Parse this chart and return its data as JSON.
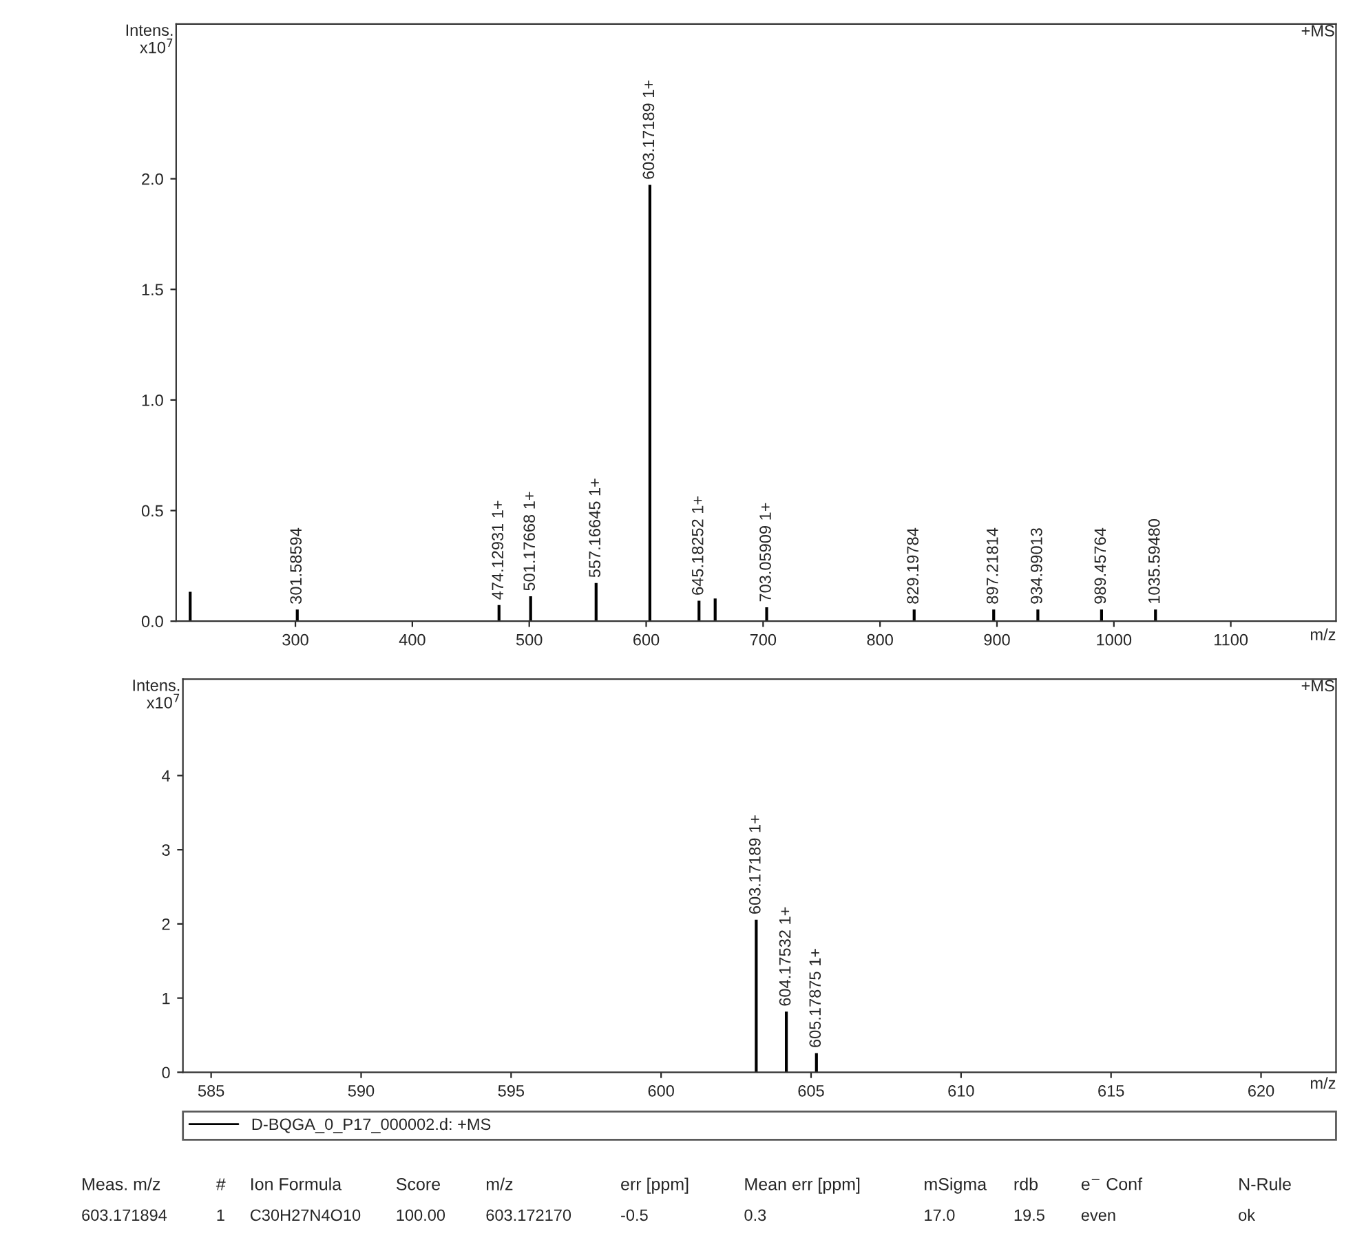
{
  "chart_data": [
    {
      "type": "bar",
      "ylabel": "Intens.\nx10$^{7}$",
      "xlabel": "m/z",
      "annotations": [
        "+MS",
        {
          "text": "301.58594",
          "x": 301.58594,
          "y": 0.05
        },
        {
          "text": "474.12931 1+",
          "x": 474.12931,
          "y": 0.07
        },
        {
          "text": "501.17668 1+",
          "x": 501.17668,
          "y": 0.11
        },
        {
          "text": "557.16645 1+",
          "x": 557.16645,
          "y": 0.17
        },
        {
          "text": "603.17189 1+",
          "x": 603.17189,
          "y": 1.97
        },
        {
          "text": "645.18252 1+",
          "x": 645.18252,
          "y": 0.09
        },
        {
          "text": "703.05909 1+",
          "x": 703.05909,
          "y": 0.06
        },
        {
          "text": "829.19784",
          "x": 829.19784,
          "y": 0.05
        },
        {
          "text": "897.21814",
          "x": 897.21814,
          "y": 0.05
        },
        {
          "text": "934.99013",
          "x": 934.99013,
          "y": 0.05
        },
        {
          "text": "989.45764",
          "x": 989.45764,
          "y": 0.05
        },
        {
          "text": "1035.59480",
          "x": 1035.5948,
          "y": 0.05
        }
      ],
      "x": [
        210,
        301.58594,
        474.12931,
        501.17668,
        557.16645,
        603.17189,
        645.18252,
        659,
        703.05909,
        829.19784,
        897.21814,
        934.99013,
        989.45764,
        1035.5948
      ],
      "series": [
        {
          "color": "#000000",
          "values": [
            0.13,
            0.05,
            0.07,
            0.11,
            0.17,
            1.97,
            0.09,
            0.1,
            0.06,
            0.05,
            0.05,
            0.05,
            0.05,
            0.05
          ]
        }
      ],
      "xlim": [
        198,
        1190
      ],
      "ylim": [
        0,
        2.7
      ],
      "xticks": [
        300,
        400,
        500,
        600,
        700,
        800,
        900,
        1000,
        1100
      ],
      "yticks": [
        {
          "value": 0,
          "label": "0.0"
        },
        {
          "value": 0.5,
          "label": "0.5"
        },
        {
          "value": 1,
          "label": "1.0"
        },
        {
          "value": 1.5,
          "label": "1.5"
        },
        {
          "value": 2,
          "label": "2.0"
        }
      ],
      "grid": false
    },
    {
      "type": "bar",
      "ylabel": "Intens.\nx10$^{7}$",
      "xlabel": "m/z",
      "annotations": [
        "+MS",
        {
          "text": "603.17189 1+",
          "x": 603.17189,
          "y": 2.05
        },
        {
          "text": "604.17532 1+",
          "x": 604.17532,
          "y": 0.81
        },
        {
          "text": "605.17875 1+",
          "x": 605.17875,
          "y": 0.25
        }
      ],
      "x": [
        603.17189,
        604.17532,
        605.17875
      ],
      "series": [
        {
          "name": "D-BQGA_0_P17_000002.d: +MS",
          "color": "#000000",
          "values": [
            2.05,
            0.81,
            0.25
          ]
        }
      ],
      "xlim": [
        584.06,
        622.5
      ],
      "ylim": [
        0,
        5.3
      ],
      "xticks": [
        585,
        590,
        595,
        600,
        605,
        610,
        615,
        620
      ],
      "yticks": [
        0,
        1,
        2,
        3,
        4
      ],
      "grid": false,
      "legend": "bottom"
    },
    {
      "type": "other",
      "annotations": [
        "Meas. m/z",
        "#",
        "Ion Formula",
        "Score",
        "m/z",
        "err [ppm]",
        "Mean err [ppm]",
        "mSigma",
        "rdb",
        "e$^{−}$ Conf",
        "N-Rule",
        "603.171894",
        "1",
        "C30H27N4O10",
        "100.00",
        "603.172170",
        "-0.5",
        "0.3",
        "17.0",
        "19.5",
        "even",
        "ok"
      ]
    }
  ]
}
